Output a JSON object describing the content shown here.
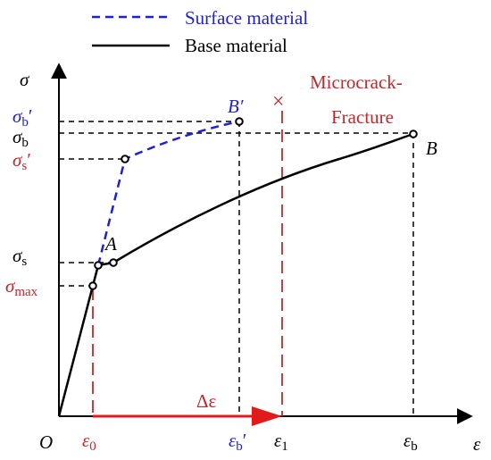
{
  "legend": {
    "surface": {
      "label": "Surface material",
      "color": "#1f1fd6",
      "style": "dashed"
    },
    "base": {
      "label": "Base material",
      "color": "#000000",
      "style": "solid"
    }
  },
  "axes": {
    "y_symbol": "σ",
    "x_symbol": "ε",
    "origin": "O"
  },
  "stress_levels": {
    "sigma_b_prime": {
      "base": "σ",
      "sub": "b",
      "mark": "′",
      "color": "#1f1fd6"
    },
    "sigma_b": {
      "base": "σ",
      "sub": "b",
      "color": "#000000"
    },
    "sigma_s_prime": {
      "base": "σ",
      "sub": "s",
      "mark": "′",
      "color": "#c0282d"
    },
    "sigma_s": {
      "base": "σ",
      "sub": "s",
      "color": "#000000"
    },
    "sigma_max": {
      "base": "σ",
      "sub": "max",
      "color": "#c0282d"
    }
  },
  "strain_levels": {
    "eps_0": {
      "base": "ε",
      "sub": "0",
      "color": "#c0282d"
    },
    "eps_b_prime": {
      "base": "ε",
      "sub": "b",
      "mark": "′",
      "color": "#1f1fd6"
    },
    "eps_1": {
      "base": "ε",
      "sub": "1",
      "color": "#000000"
    },
    "eps_b": {
      "base": "ε",
      "sub": "b",
      "color": "#000000"
    }
  },
  "points": {
    "A": "A",
    "B": "B",
    "B_prime": "B′"
  },
  "annotations": {
    "delta_eps": "Δε",
    "fracture_marker": "×",
    "microcrack_line1": "Microcrack-",
    "microcrack_line2": "Fracture",
    "red": "#c0282d"
  }
}
